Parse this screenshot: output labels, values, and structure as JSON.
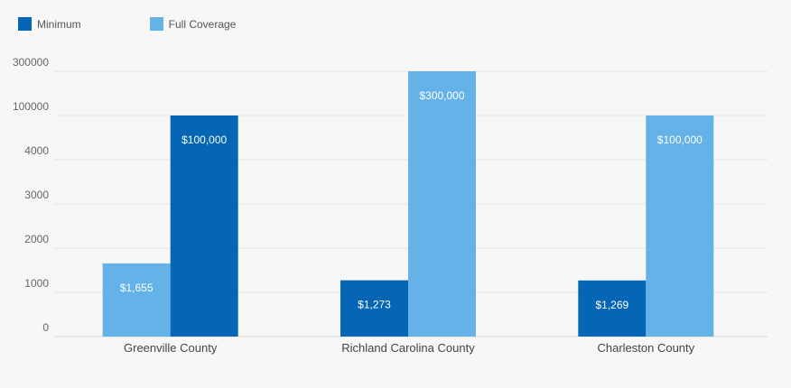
{
  "chart_data": {
    "type": "bar",
    "categories": [
      "Greenville County",
      "Richland Carolina County",
      "Charleston County"
    ],
    "y_ticks": [
      "0",
      "1000",
      "2000",
      "3000",
      "4000",
      "100000",
      "300000"
    ],
    "series": [
      {
        "name": "Minimum",
        "color": "#0466b4",
        "values": [
          100000,
          1273,
          1269
        ],
        "labels": [
          "$100,000",
          "$1,273",
          "$1,269"
        ]
      },
      {
        "name": "Full Coverage",
        "color": "#64b2e8",
        "values": [
          1655,
          300000,
          100000
        ],
        "labels": [
          "$1,655",
          "$300,000",
          "$100,000"
        ]
      }
    ],
    "bar_order": [
      [
        "Full Coverage",
        "Minimum"
      ],
      [
        "Minimum",
        "Full Coverage"
      ],
      [
        "Minimum",
        "Full Coverage"
      ]
    ],
    "grid": true,
    "legend_position": "top-left"
  }
}
